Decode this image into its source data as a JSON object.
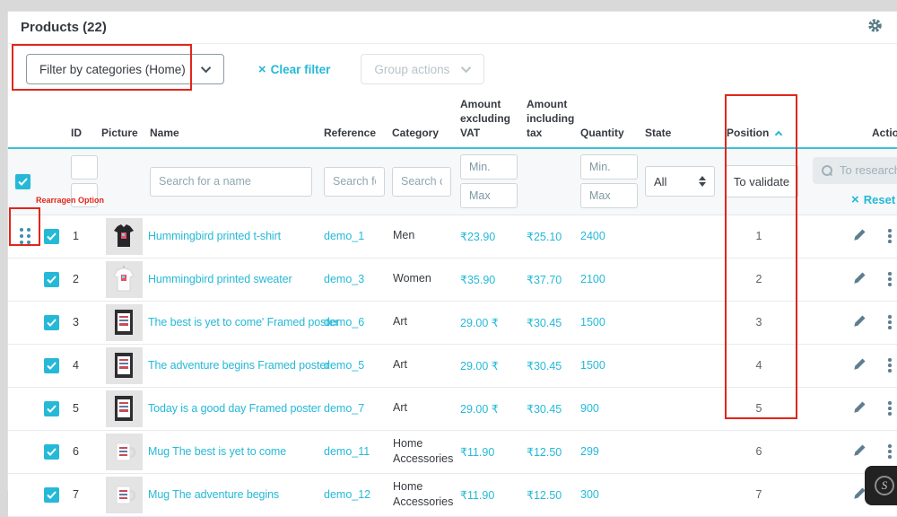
{
  "page": {
    "title": "Products (22)"
  },
  "toolbar": {
    "category_filter_label": "Filter by categories (Home)",
    "clear_filter_label": "Clear filter",
    "group_actions_label": "Group actions"
  },
  "annotations": {
    "rearrange_label": "Rearragen Option"
  },
  "icons": {
    "clear_icon": "×",
    "reset_icon": "×",
    "badge_glyph": "S"
  },
  "table": {
    "headers": {
      "id": "ID",
      "picture": "Picture",
      "name": "Name",
      "reference": "Reference",
      "category": "Category",
      "amount_excluding_vat": "Amount excluding VAT",
      "amount_including_tax": "Amount including tax",
      "quantity": "Quantity",
      "state": "State",
      "position": "Position",
      "actions": "Actions"
    },
    "sort": {
      "column": "Position",
      "direction": "asc"
    },
    "filters": {
      "name_placeholder": "Search for a name",
      "reference_placeholder": "Search for reference",
      "category_placeholder": "Search category",
      "min_placeholder": "Min.",
      "max_placeholder": "Max",
      "state_value": "All",
      "position_button_label": "To validate",
      "research_placeholder": "To research",
      "reset_label": "Reset"
    },
    "rows": [
      {
        "id": "1",
        "thumb": "tshirt",
        "name": "Hummingbird printed t-shirt",
        "reference": "demo_1",
        "category": "Men",
        "excl": "₹23.90",
        "incl": "₹25.10",
        "qty": "2400",
        "state": "on",
        "position": "1"
      },
      {
        "id": "2",
        "thumb": "sweater",
        "name": "Hummingbird printed sweater",
        "reference": "demo_3",
        "category": "Women",
        "excl": "₹35.90",
        "incl": "₹37.70",
        "qty": "2100",
        "state": "on",
        "position": "2"
      },
      {
        "id": "3",
        "thumb": "poster",
        "name": "The best is yet to come' Framed poster",
        "reference": "demo_6",
        "category": "Art",
        "excl": "29.00 ₹",
        "incl": "₹30.45",
        "qty": "1500",
        "state": "on",
        "position": "3"
      },
      {
        "id": "4",
        "thumb": "poster",
        "name": "The adventure begins Framed poster",
        "reference": "demo_5",
        "category": "Art",
        "excl": "29.00 ₹",
        "incl": "₹30.45",
        "qty": "1500",
        "state": "on",
        "position": "4"
      },
      {
        "id": "5",
        "thumb": "poster",
        "name": "Today is a good day Framed poster",
        "reference": "demo_7",
        "category": "Art",
        "excl": "29.00 ₹",
        "incl": "₹30.45",
        "qty": "900",
        "state": "on",
        "position": "5"
      },
      {
        "id": "6",
        "thumb": "mug",
        "name": "Mug The best is yet to come",
        "reference": "demo_11",
        "category": "Home Accessories",
        "excl": "₹11.90",
        "incl": "₹12.50",
        "qty": "299",
        "state": "on",
        "position": "6"
      },
      {
        "id": "7",
        "thumb": "mug",
        "name": "Mug The adventure begins",
        "reference": "demo_12",
        "category": "Home Accessories",
        "excl": "₹11.90",
        "incl": "₹12.50",
        "qty": "300",
        "state": "on",
        "position": "7"
      }
    ]
  },
  "colors": {
    "accent_cyan": "#25b9d7",
    "toggle_green": "#72c279",
    "annotation_red": "#e2251b",
    "header_underline": "#38c3da",
    "text_dark": "#363a41"
  }
}
